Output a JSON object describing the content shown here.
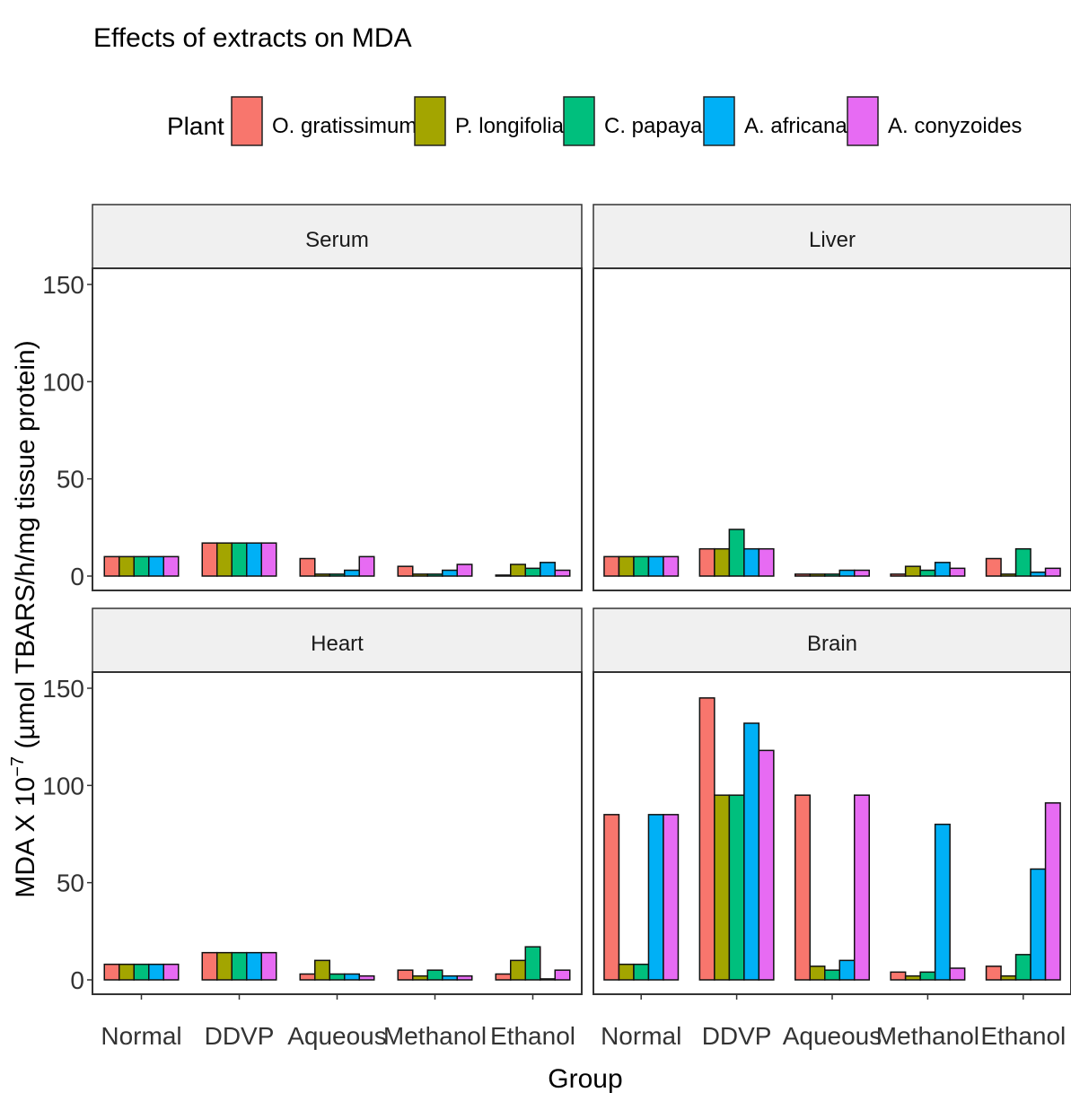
{
  "chart_data": {
    "type": "bar",
    "title": "Effects of extracts on MDA",
    "xlabel": "Group",
    "ylabel": {
      "prefix": "MDA X 10",
      "superscript": "−7",
      "suffix": " (µmol TBARS/h/mg tissue protein)"
    },
    "ylim": [
      0,
      150
    ],
    "yticks": [
      0,
      50,
      100,
      150
    ],
    "categories": [
      "Normal",
      "DDVP",
      "Aqueous",
      "Methanol",
      "Ethanol"
    ],
    "legend": {
      "title": "Plant",
      "position": "top",
      "items": [
        {
          "name": "O. gratissimum",
          "color": "#F8766D"
        },
        {
          "name": "P. longifolia",
          "color": "#A3A500"
        },
        {
          "name": "C. papaya",
          "color": "#00BF7D"
        },
        {
          "name": "A. africana",
          "color": "#00B0F6"
        },
        {
          "name": "A. conyzoides",
          "color": "#E76BF3"
        }
      ]
    },
    "facets": [
      {
        "name": "Serum",
        "series": [
          {
            "name": "O. gratissimum",
            "values": [
              10,
              17,
              9,
              5,
              0.5
            ]
          },
          {
            "name": "P. longifolia",
            "values": [
              10,
              17,
              1,
              1,
              6
            ]
          },
          {
            "name": "C. papaya",
            "values": [
              10,
              17,
              1,
              1,
              4
            ]
          },
          {
            "name": "A. africana",
            "values": [
              10,
              17,
              3,
              3,
              7
            ]
          },
          {
            "name": "A. conyzoides",
            "values": [
              10,
              17,
              10,
              6,
              3
            ]
          }
        ]
      },
      {
        "name": "Liver",
        "series": [
          {
            "name": "O. gratissimum",
            "values": [
              10,
              14,
              1,
              1,
              9
            ]
          },
          {
            "name": "P. longifolia",
            "values": [
              10,
              14,
              1,
              5,
              1
            ]
          },
          {
            "name": "C. papaya",
            "values": [
              10,
              24,
              1,
              3,
              14
            ]
          },
          {
            "name": "A. africana",
            "values": [
              10,
              14,
              3,
              7,
              2
            ]
          },
          {
            "name": "A. conyzoides",
            "values": [
              10,
              14,
              3,
              4,
              4
            ]
          }
        ]
      },
      {
        "name": "Heart",
        "series": [
          {
            "name": "O. gratissimum",
            "values": [
              8,
              14,
              3,
              5,
              3
            ]
          },
          {
            "name": "P. longifolia",
            "values": [
              8,
              14,
              10,
              2,
              10
            ]
          },
          {
            "name": "C. papaya",
            "values": [
              8,
              14,
              3,
              5,
              17
            ]
          },
          {
            "name": "A. africana",
            "values": [
              8,
              14,
              3,
              2,
              0.5
            ]
          },
          {
            "name": "A. conyzoides",
            "values": [
              8,
              14,
              2,
              2,
              5
            ]
          }
        ]
      },
      {
        "name": "Brain",
        "series": [
          {
            "name": "O. gratissimum",
            "values": [
              85,
              145,
              95,
              4,
              7
            ]
          },
          {
            "name": "P. longifolia",
            "values": [
              8,
              95,
              7,
              2,
              2
            ]
          },
          {
            "name": "C. papaya",
            "values": [
              8,
              95,
              5,
              4,
              13
            ]
          },
          {
            "name": "A. africana",
            "values": [
              85,
              132,
              10,
              80,
              57
            ]
          },
          {
            "name": "A. conyzoides",
            "values": [
              85,
              118,
              95,
              6,
              91
            ]
          }
        ]
      }
    ]
  }
}
